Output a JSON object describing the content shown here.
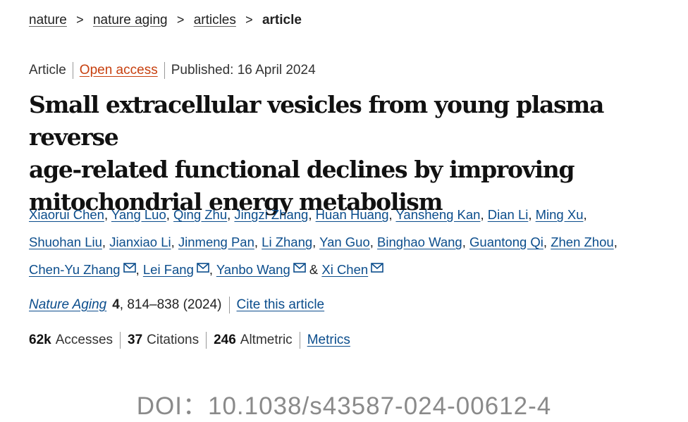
{
  "breadcrumb": {
    "items": [
      "nature",
      "nature aging",
      "articles"
    ],
    "current": "article",
    "separator": ">"
  },
  "meta": {
    "type": "Article",
    "access": "Open access",
    "published": "Published: 16 April 2024"
  },
  "title": {
    "line1": "Small extracellular vesicles from young plasma reverse",
    "line2": "age-related functional declines by improving",
    "line3": "mitochondrial energy metabolism"
  },
  "authors": {
    "names": [
      "Xiaorui Chen",
      "Yang Luo",
      "Qing Zhu",
      "Jingzi Zhang",
      "Huan Huang",
      "Yansheng Kan",
      "Dian Li",
      "Ming Xu",
      "Shuohan Liu",
      "Jianxiao Li",
      "Jinmeng Pan",
      "Li Zhang",
      "Yan Guo",
      "Binghao Wang",
      "Guantong Qi",
      "Zhen Zhou",
      "Chen-Yu Zhang",
      "Lei Fang",
      "Yanbo Wang",
      "Xi Chen"
    ],
    "and": "&"
  },
  "journal": {
    "name": "Nature Aging",
    "volume": "4",
    "pages_year": ", 814–838 (2024)",
    "cite_label": "Cite this article"
  },
  "metrics": {
    "accesses_value": "62k",
    "accesses_label": "Accesses",
    "citations_value": "37",
    "citations_label": "Citations",
    "altmetric_value": "246",
    "altmetric_label": "Altmetric",
    "metrics_link": "Metrics"
  },
  "doi": "DOI：10.1038/s43587-024-00612-4",
  "colors": {
    "link": "#0b4d8c",
    "open_access": "#c7400f",
    "doi_text": "#8a8a8a"
  },
  "icons": {
    "corresponding_author": "mail-icon"
  }
}
